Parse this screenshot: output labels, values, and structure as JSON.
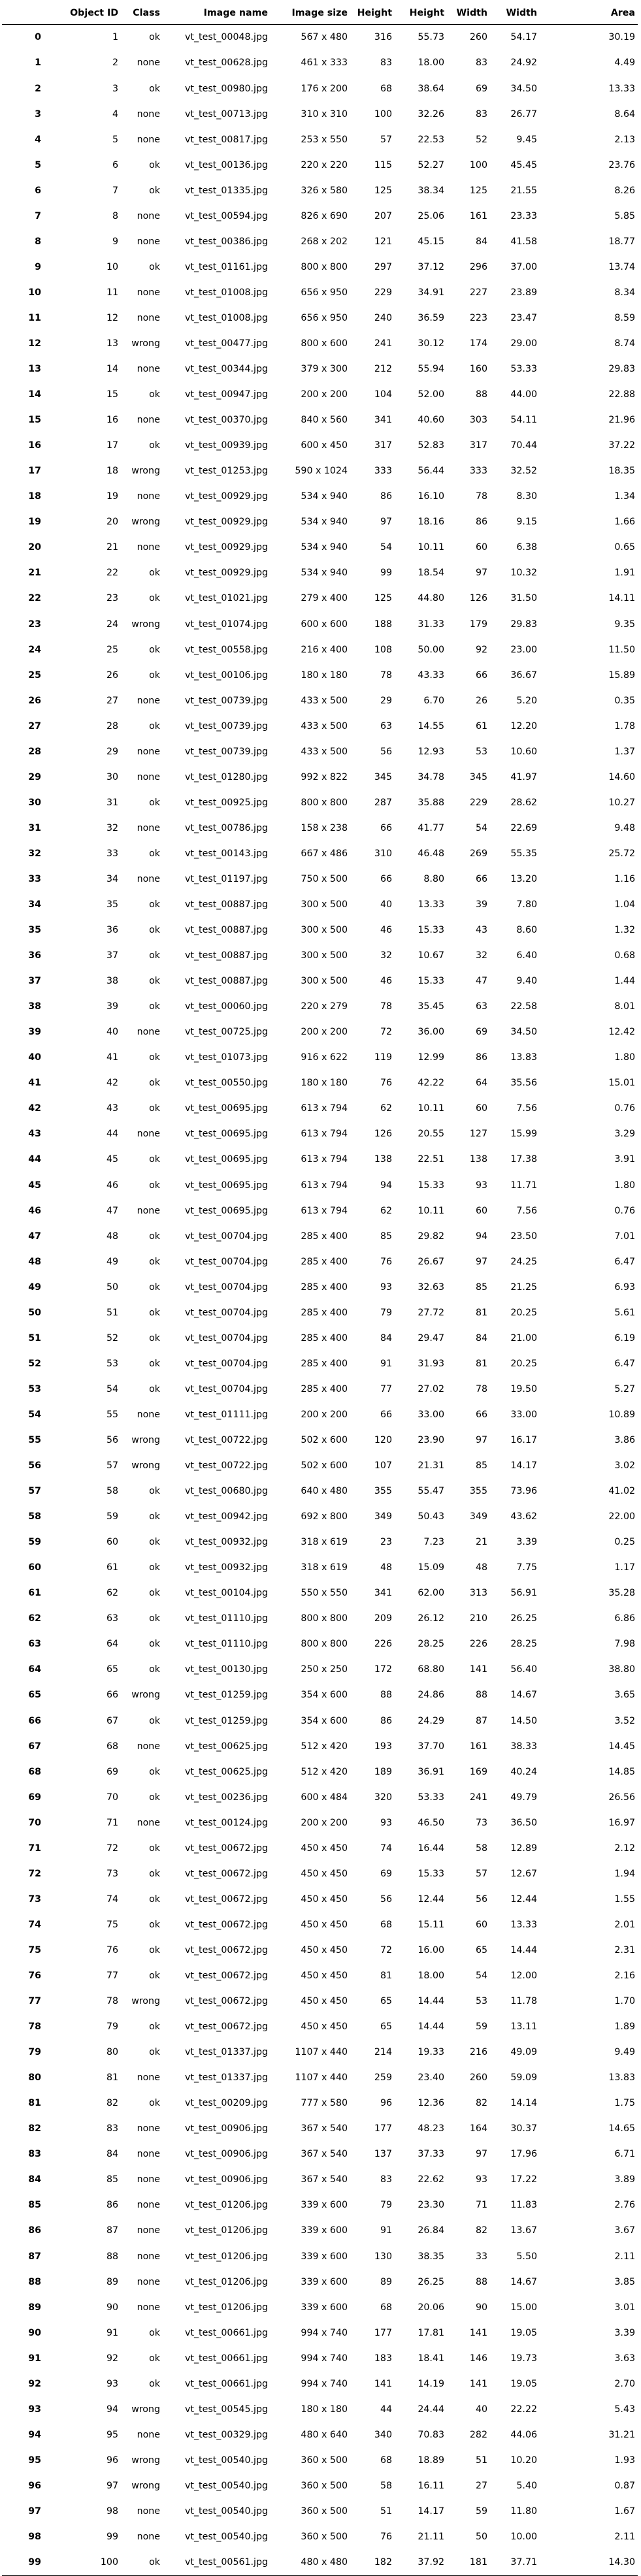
{
  "columns": [
    "",
    "Object ID",
    "Class",
    "Image name",
    "Image size",
    "Height",
    "Height",
    "Width",
    "Width",
    "Area"
  ],
  "rows": [
    [
      0,
      1,
      "ok",
      "vt_test_00048.jpg",
      "567 x 480",
      316,
      "55.73",
      260,
      "54.17",
      "30.19"
    ],
    [
      1,
      2,
      "none",
      "vt_test_00628.jpg",
      "461 x 333",
      83,
      "18.00",
      83,
      "24.92",
      "4.49"
    ],
    [
      2,
      3,
      "ok",
      "vt_test_00980.jpg",
      "176 x 200",
      68,
      "38.64",
      69,
      "34.50",
      "13.33"
    ],
    [
      3,
      4,
      "none",
      "vt_test_00713.jpg",
      "310 x 310",
      100,
      "32.26",
      83,
      "26.77",
      "8.64"
    ],
    [
      4,
      5,
      "none",
      "vt_test_00817.jpg",
      "253 x 550",
      57,
      "22.53",
      52,
      "9.45",
      "2.13"
    ],
    [
      5,
      6,
      "ok",
      "vt_test_00136.jpg",
      "220 x 220",
      115,
      "52.27",
      100,
      "45.45",
      "23.76"
    ],
    [
      6,
      7,
      "ok",
      "vt_test_01335.jpg",
      "326 x 580",
      125,
      "38.34",
      125,
      "21.55",
      "8.26"
    ],
    [
      7,
      8,
      "none",
      "vt_test_00594.jpg",
      "826 x 690",
      207,
      "25.06",
      161,
      "23.33",
      "5.85"
    ],
    [
      8,
      9,
      "none",
      "vt_test_00386.jpg",
      "268 x 202",
      121,
      "45.15",
      84,
      "41.58",
      "18.77"
    ],
    [
      9,
      10,
      "ok",
      "vt_test_01161.jpg",
      "800 x 800",
      297,
      "37.12",
      296,
      "37.00",
      "13.74"
    ],
    [
      10,
      11,
      "none",
      "vt_test_01008.jpg",
      "656 x 950",
      229,
      "34.91",
      227,
      "23.89",
      "8.34"
    ],
    [
      11,
      12,
      "none",
      "vt_test_01008.jpg",
      "656 x 950",
      240,
      "36.59",
      223,
      "23.47",
      "8.59"
    ],
    [
      12,
      13,
      "wrong",
      "vt_test_00477.jpg",
      "800 x 600",
      241,
      "30.12",
      174,
      "29.00",
      "8.74"
    ],
    [
      13,
      14,
      "none",
      "vt_test_00344.jpg",
      "379 x 300",
      212,
      "55.94",
      160,
      "53.33",
      "29.83"
    ],
    [
      14,
      15,
      "ok",
      "vt_test_00947.jpg",
      "200 x 200",
      104,
      "52.00",
      88,
      "44.00",
      "22.88"
    ],
    [
      15,
      16,
      "none",
      "vt_test_00370.jpg",
      "840 x 560",
      341,
      "40.60",
      303,
      "54.11",
      "21.96"
    ],
    [
      16,
      17,
      "ok",
      "vt_test_00939.jpg",
      "600 x 450",
      317,
      "52.83",
      317,
      "70.44",
      "37.22"
    ],
    [
      17,
      18,
      "wrong",
      "vt_test_01253.jpg",
      "590 x 1024",
      333,
      "56.44",
      333,
      "32.52",
      "18.35"
    ],
    [
      18,
      19,
      "none",
      "vt_test_00929.jpg",
      "534 x 940",
      86,
      "16.10",
      78,
      "8.30",
      "1.34"
    ],
    [
      19,
      20,
      "wrong",
      "vt_test_00929.jpg",
      "534 x 940",
      97,
      "18.16",
      86,
      "9.15",
      "1.66"
    ],
    [
      20,
      21,
      "none",
      "vt_test_00929.jpg",
      "534 x 940",
      54,
      "10.11",
      60,
      "6.38",
      "0.65"
    ],
    [
      21,
      22,
      "ok",
      "vt_test_00929.jpg",
      "534 x 940",
      99,
      "18.54",
      97,
      "10.32",
      "1.91"
    ],
    [
      22,
      23,
      "ok",
      "vt_test_01021.jpg",
      "279 x 400",
      125,
      "44.80",
      126,
      "31.50",
      "14.11"
    ],
    [
      23,
      24,
      "wrong",
      "vt_test_01074.jpg",
      "600 x 600",
      188,
      "31.33",
      179,
      "29.83",
      "9.35"
    ],
    [
      24,
      25,
      "ok",
      "vt_test_00558.jpg",
      "216 x 400",
      108,
      "50.00",
      92,
      "23.00",
      "11.50"
    ],
    [
      25,
      26,
      "ok",
      "vt_test_00106.jpg",
      "180 x 180",
      78,
      "43.33",
      66,
      "36.67",
      "15.89"
    ],
    [
      26,
      27,
      "none",
      "vt_test_00739.jpg",
      "433 x 500",
      29,
      "6.70",
      26,
      "5.20",
      "0.35"
    ],
    [
      27,
      28,
      "ok",
      "vt_test_00739.jpg",
      "433 x 500",
      63,
      "14.55",
      61,
      "12.20",
      "1.78"
    ],
    [
      28,
      29,
      "none",
      "vt_test_00739.jpg",
      "433 x 500",
      56,
      "12.93",
      53,
      "10.60",
      "1.37"
    ],
    [
      29,
      30,
      "none",
      "vt_test_01280.jpg",
      "992 x 822",
      345,
      "34.78",
      345,
      "41.97",
      "14.60"
    ],
    [
      30,
      31,
      "ok",
      "vt_test_00925.jpg",
      "800 x 800",
      287,
      "35.88",
      229,
      "28.62",
      "10.27"
    ],
    [
      31,
      32,
      "none",
      "vt_test_00786.jpg",
      "158 x 238",
      66,
      "41.77",
      54,
      "22.69",
      "9.48"
    ],
    [
      32,
      33,
      "ok",
      "vt_test_00143.jpg",
      "667 x 486",
      310,
      "46.48",
      269,
      "55.35",
      "25.72"
    ],
    [
      33,
      34,
      "none",
      "vt_test_01197.jpg",
      "750 x 500",
      66,
      "8.80",
      66,
      "13.20",
      "1.16"
    ],
    [
      34,
      35,
      "ok",
      "vt_test_00887.jpg",
      "300 x 500",
      40,
      "13.33",
      39,
      "7.80",
      "1.04"
    ],
    [
      35,
      36,
      "ok",
      "vt_test_00887.jpg",
      "300 x 500",
      46,
      "15.33",
      43,
      "8.60",
      "1.32"
    ],
    [
      36,
      37,
      "ok",
      "vt_test_00887.jpg",
      "300 x 500",
      32,
      "10.67",
      32,
      "6.40",
      "0.68"
    ],
    [
      37,
      38,
      "ok",
      "vt_test_00887.jpg",
      "300 x 500",
      46,
      "15.33",
      47,
      "9.40",
      "1.44"
    ],
    [
      38,
      39,
      "ok",
      "vt_test_00060.jpg",
      "220 x 279",
      78,
      "35.45",
      63,
      "22.58",
      "8.01"
    ],
    [
      39,
      40,
      "none",
      "vt_test_00725.jpg",
      "200 x 200",
      72,
      "36.00",
      69,
      "34.50",
      "12.42"
    ],
    [
      40,
      41,
      "ok",
      "vt_test_01073.jpg",
      "916 x 622",
      119,
      "12.99",
      86,
      "13.83",
      "1.80"
    ],
    [
      41,
      42,
      "ok",
      "vt_test_00550.jpg",
      "180 x 180",
      76,
      "42.22",
      64,
      "35.56",
      "15.01"
    ],
    [
      42,
      43,
      "ok",
      "vt_test_00695.jpg",
      "613 x 794",
      62,
      "10.11",
      60,
      "7.56",
      "0.76"
    ],
    [
      43,
      44,
      "none",
      "vt_test_00695.jpg",
      "613 x 794",
      126,
      "20.55",
      127,
      "15.99",
      "3.29"
    ],
    [
      44,
      45,
      "ok",
      "vt_test_00695.jpg",
      "613 x 794",
      138,
      "22.51",
      138,
      "17.38",
      "3.91"
    ],
    [
      45,
      46,
      "ok",
      "vt_test_00695.jpg",
      "613 x 794",
      94,
      "15.33",
      93,
      "11.71",
      "1.80"
    ],
    [
      46,
      47,
      "none",
      "vt_test_00695.jpg",
      "613 x 794",
      62,
      "10.11",
      60,
      "7.56",
      "0.76"
    ],
    [
      47,
      48,
      "ok",
      "vt_test_00704.jpg",
      "285 x 400",
      85,
      "29.82",
      94,
      "23.50",
      "7.01"
    ],
    [
      48,
      49,
      "ok",
      "vt_test_00704.jpg",
      "285 x 400",
      76,
      "26.67",
      97,
      "24.25",
      "6.47"
    ],
    [
      49,
      50,
      "ok",
      "vt_test_00704.jpg",
      "285 x 400",
      93,
      "32.63",
      85,
      "21.25",
      "6.93"
    ],
    [
      50,
      51,
      "ok",
      "vt_test_00704.jpg",
      "285 x 400",
      79,
      "27.72",
      81,
      "20.25",
      "5.61"
    ],
    [
      51,
      52,
      "ok",
      "vt_test_00704.jpg",
      "285 x 400",
      84,
      "29.47",
      84,
      "21.00",
      "6.19"
    ],
    [
      52,
      53,
      "ok",
      "vt_test_00704.jpg",
      "285 x 400",
      91,
      "31.93",
      81,
      "20.25",
      "6.47"
    ],
    [
      53,
      54,
      "ok",
      "vt_test_00704.jpg",
      "285 x 400",
      77,
      "27.02",
      78,
      "19.50",
      "5.27"
    ],
    [
      54,
      55,
      "none",
      "vt_test_01111.jpg",
      "200 x 200",
      66,
      "33.00",
      66,
      "33.00",
      "10.89"
    ],
    [
      55,
      56,
      "wrong",
      "vt_test_00722.jpg",
      "502 x 600",
      120,
      "23.90",
      97,
      "16.17",
      "3.86"
    ],
    [
      56,
      57,
      "wrong",
      "vt_test_00722.jpg",
      "502 x 600",
      107,
      "21.31",
      85,
      "14.17",
      "3.02"
    ],
    [
      57,
      58,
      "ok",
      "vt_test_00680.jpg",
      "640 x 480",
      355,
      "55.47",
      355,
      "73.96",
      "41.02"
    ],
    [
      58,
      59,
      "ok",
      "vt_test_00942.jpg",
      "692 x 800",
      349,
      "50.43",
      349,
      "43.62",
      "22.00"
    ],
    [
      59,
      60,
      "ok",
      "vt_test_00932.jpg",
      "318 x 619",
      23,
      "7.23",
      21,
      "3.39",
      "0.25"
    ],
    [
      60,
      61,
      "ok",
      "vt_test_00932.jpg",
      "318 x 619",
      48,
      "15.09",
      48,
      "7.75",
      "1.17"
    ],
    [
      61,
      62,
      "ok",
      "vt_test_00104.jpg",
      "550 x 550",
      341,
      "62.00",
      313,
      "56.91",
      "35.28"
    ],
    [
      62,
      63,
      "ok",
      "vt_test_01110.jpg",
      "800 x 800",
      209,
      "26.12",
      210,
      "26.25",
      "6.86"
    ],
    [
      63,
      64,
      "ok",
      "vt_test_01110.jpg",
      "800 x 800",
      226,
      "28.25",
      226,
      "28.25",
      "7.98"
    ],
    [
      64,
      65,
      "ok",
      "vt_test_00130.jpg",
      "250 x 250",
      172,
      "68.80",
      141,
      "56.40",
      "38.80"
    ],
    [
      65,
      66,
      "wrong",
      "vt_test_01259.jpg",
      "354 x 600",
      88,
      "24.86",
      88,
      "14.67",
      "3.65"
    ],
    [
      66,
      67,
      "ok",
      "vt_test_01259.jpg",
      "354 x 600",
      86,
      "24.29",
      87,
      "14.50",
      "3.52"
    ],
    [
      67,
      68,
      "none",
      "vt_test_00625.jpg",
      "512 x 420",
      193,
      "37.70",
      161,
      "38.33",
      "14.45"
    ],
    [
      68,
      69,
      "ok",
      "vt_test_00625.jpg",
      "512 x 420",
      189,
      "36.91",
      169,
      "40.24",
      "14.85"
    ],
    [
      69,
      70,
      "ok",
      "vt_test_00236.jpg",
      "600 x 484",
      320,
      "53.33",
      241,
      "49.79",
      "26.56"
    ],
    [
      70,
      71,
      "none",
      "vt_test_00124.jpg",
      "200 x 200",
      93,
      "46.50",
      73,
      "36.50",
      "16.97"
    ],
    [
      71,
      72,
      "ok",
      "vt_test_00672.jpg",
      "450 x 450",
      74,
      "16.44",
      58,
      "12.89",
      "2.12"
    ],
    [
      72,
      73,
      "ok",
      "vt_test_00672.jpg",
      "450 x 450",
      69,
      "15.33",
      57,
      "12.67",
      "1.94"
    ],
    [
      73,
      74,
      "ok",
      "vt_test_00672.jpg",
      "450 x 450",
      56,
      "12.44",
      56,
      "12.44",
      "1.55"
    ],
    [
      74,
      75,
      "ok",
      "vt_test_00672.jpg",
      "450 x 450",
      68,
      "15.11",
      60,
      "13.33",
      "2.01"
    ],
    [
      75,
      76,
      "ok",
      "vt_test_00672.jpg",
      "450 x 450",
      72,
      "16.00",
      65,
      "14.44",
      "2.31"
    ],
    [
      76,
      77,
      "ok",
      "vt_test_00672.jpg",
      "450 x 450",
      81,
      "18.00",
      54,
      "12.00",
      "2.16"
    ],
    [
      77,
      78,
      "wrong",
      "vt_test_00672.jpg",
      "450 x 450",
      65,
      "14.44",
      53,
      "11.78",
      "1.70"
    ],
    [
      78,
      79,
      "ok",
      "vt_test_00672.jpg",
      "450 x 450",
      65,
      "14.44",
      59,
      "13.11",
      "1.89"
    ],
    [
      79,
      80,
      "ok",
      "vt_test_01337.jpg",
      "1107 x 440",
      214,
      "19.33",
      216,
      "49.09",
      "9.49"
    ],
    [
      80,
      81,
      "none",
      "vt_test_01337.jpg",
      "1107 x 440",
      259,
      "23.40",
      260,
      "59.09",
      "13.83"
    ],
    [
      81,
      82,
      "ok",
      "vt_test_00209.jpg",
      "777 x 580",
      96,
      "12.36",
      82,
      "14.14",
      "1.75"
    ],
    [
      82,
      83,
      "none",
      "vt_test_00906.jpg",
      "367 x 540",
      177,
      "48.23",
      164,
      "30.37",
      "14.65"
    ],
    [
      83,
      84,
      "none",
      "vt_test_00906.jpg",
      "367 x 540",
      137,
      "37.33",
      97,
      "17.96",
      "6.71"
    ],
    [
      84,
      85,
      "none",
      "vt_test_00906.jpg",
      "367 x 540",
      83,
      "22.62",
      93,
      "17.22",
      "3.89"
    ],
    [
      85,
      86,
      "none",
      "vt_test_01206.jpg",
      "339 x 600",
      79,
      "23.30",
      71,
      "11.83",
      "2.76"
    ],
    [
      86,
      87,
      "none",
      "vt_test_01206.jpg",
      "339 x 600",
      91,
      "26.84",
      82,
      "13.67",
      "3.67"
    ],
    [
      87,
      88,
      "none",
      "vt_test_01206.jpg",
      "339 x 600",
      130,
      "38.35",
      33,
      "5.50",
      "2.11"
    ],
    [
      88,
      89,
      "none",
      "vt_test_01206.jpg",
      "339 x 600",
      89,
      "26.25",
      88,
      "14.67",
      "3.85"
    ],
    [
      89,
      90,
      "none",
      "vt_test_01206.jpg",
      "339 x 600",
      68,
      "20.06",
      90,
      "15.00",
      "3.01"
    ],
    [
      90,
      91,
      "ok",
      "vt_test_00661.jpg",
      "994 x 740",
      177,
      "17.81",
      141,
      "19.05",
      "3.39"
    ],
    [
      91,
      92,
      "ok",
      "vt_test_00661.jpg",
      "994 x 740",
      183,
      "18.41",
      146,
      "19.73",
      "3.63"
    ],
    [
      92,
      93,
      "ok",
      "vt_test_00661.jpg",
      "994 x 740",
      141,
      "14.19",
      141,
      "19.05",
      "2.70"
    ],
    [
      93,
      94,
      "wrong",
      "vt_test_00545.jpg",
      "180 x 180",
      44,
      "24.44",
      40,
      "22.22",
      "5.43"
    ],
    [
      94,
      95,
      "none",
      "vt_test_00329.jpg",
      "480 x 640",
      340,
      "70.83",
      282,
      "44.06",
      "31.21"
    ],
    [
      95,
      96,
      "wrong",
      "vt_test_00540.jpg",
      "360 x 500",
      68,
      "18.89",
      51,
      "10.20",
      "1.93"
    ],
    [
      96,
      97,
      "wrong",
      "vt_test_00540.jpg",
      "360 x 500",
      58,
      "16.11",
      27,
      "5.40",
      "0.87"
    ],
    [
      97,
      98,
      "none",
      "vt_test_00540.jpg",
      "360 x 500",
      51,
      "14.17",
      59,
      "11.80",
      "1.67"
    ],
    [
      98,
      99,
      "none",
      "vt_test_00540.jpg",
      "360 x 500",
      76,
      "21.11",
      50,
      "10.00",
      "2.11"
    ],
    [
      99,
      100,
      "ok",
      "vt_test_00561.jpg",
      "480 x 480",
      182,
      "37.92",
      181,
      "37.71",
      "14.30"
    ]
  ]
}
